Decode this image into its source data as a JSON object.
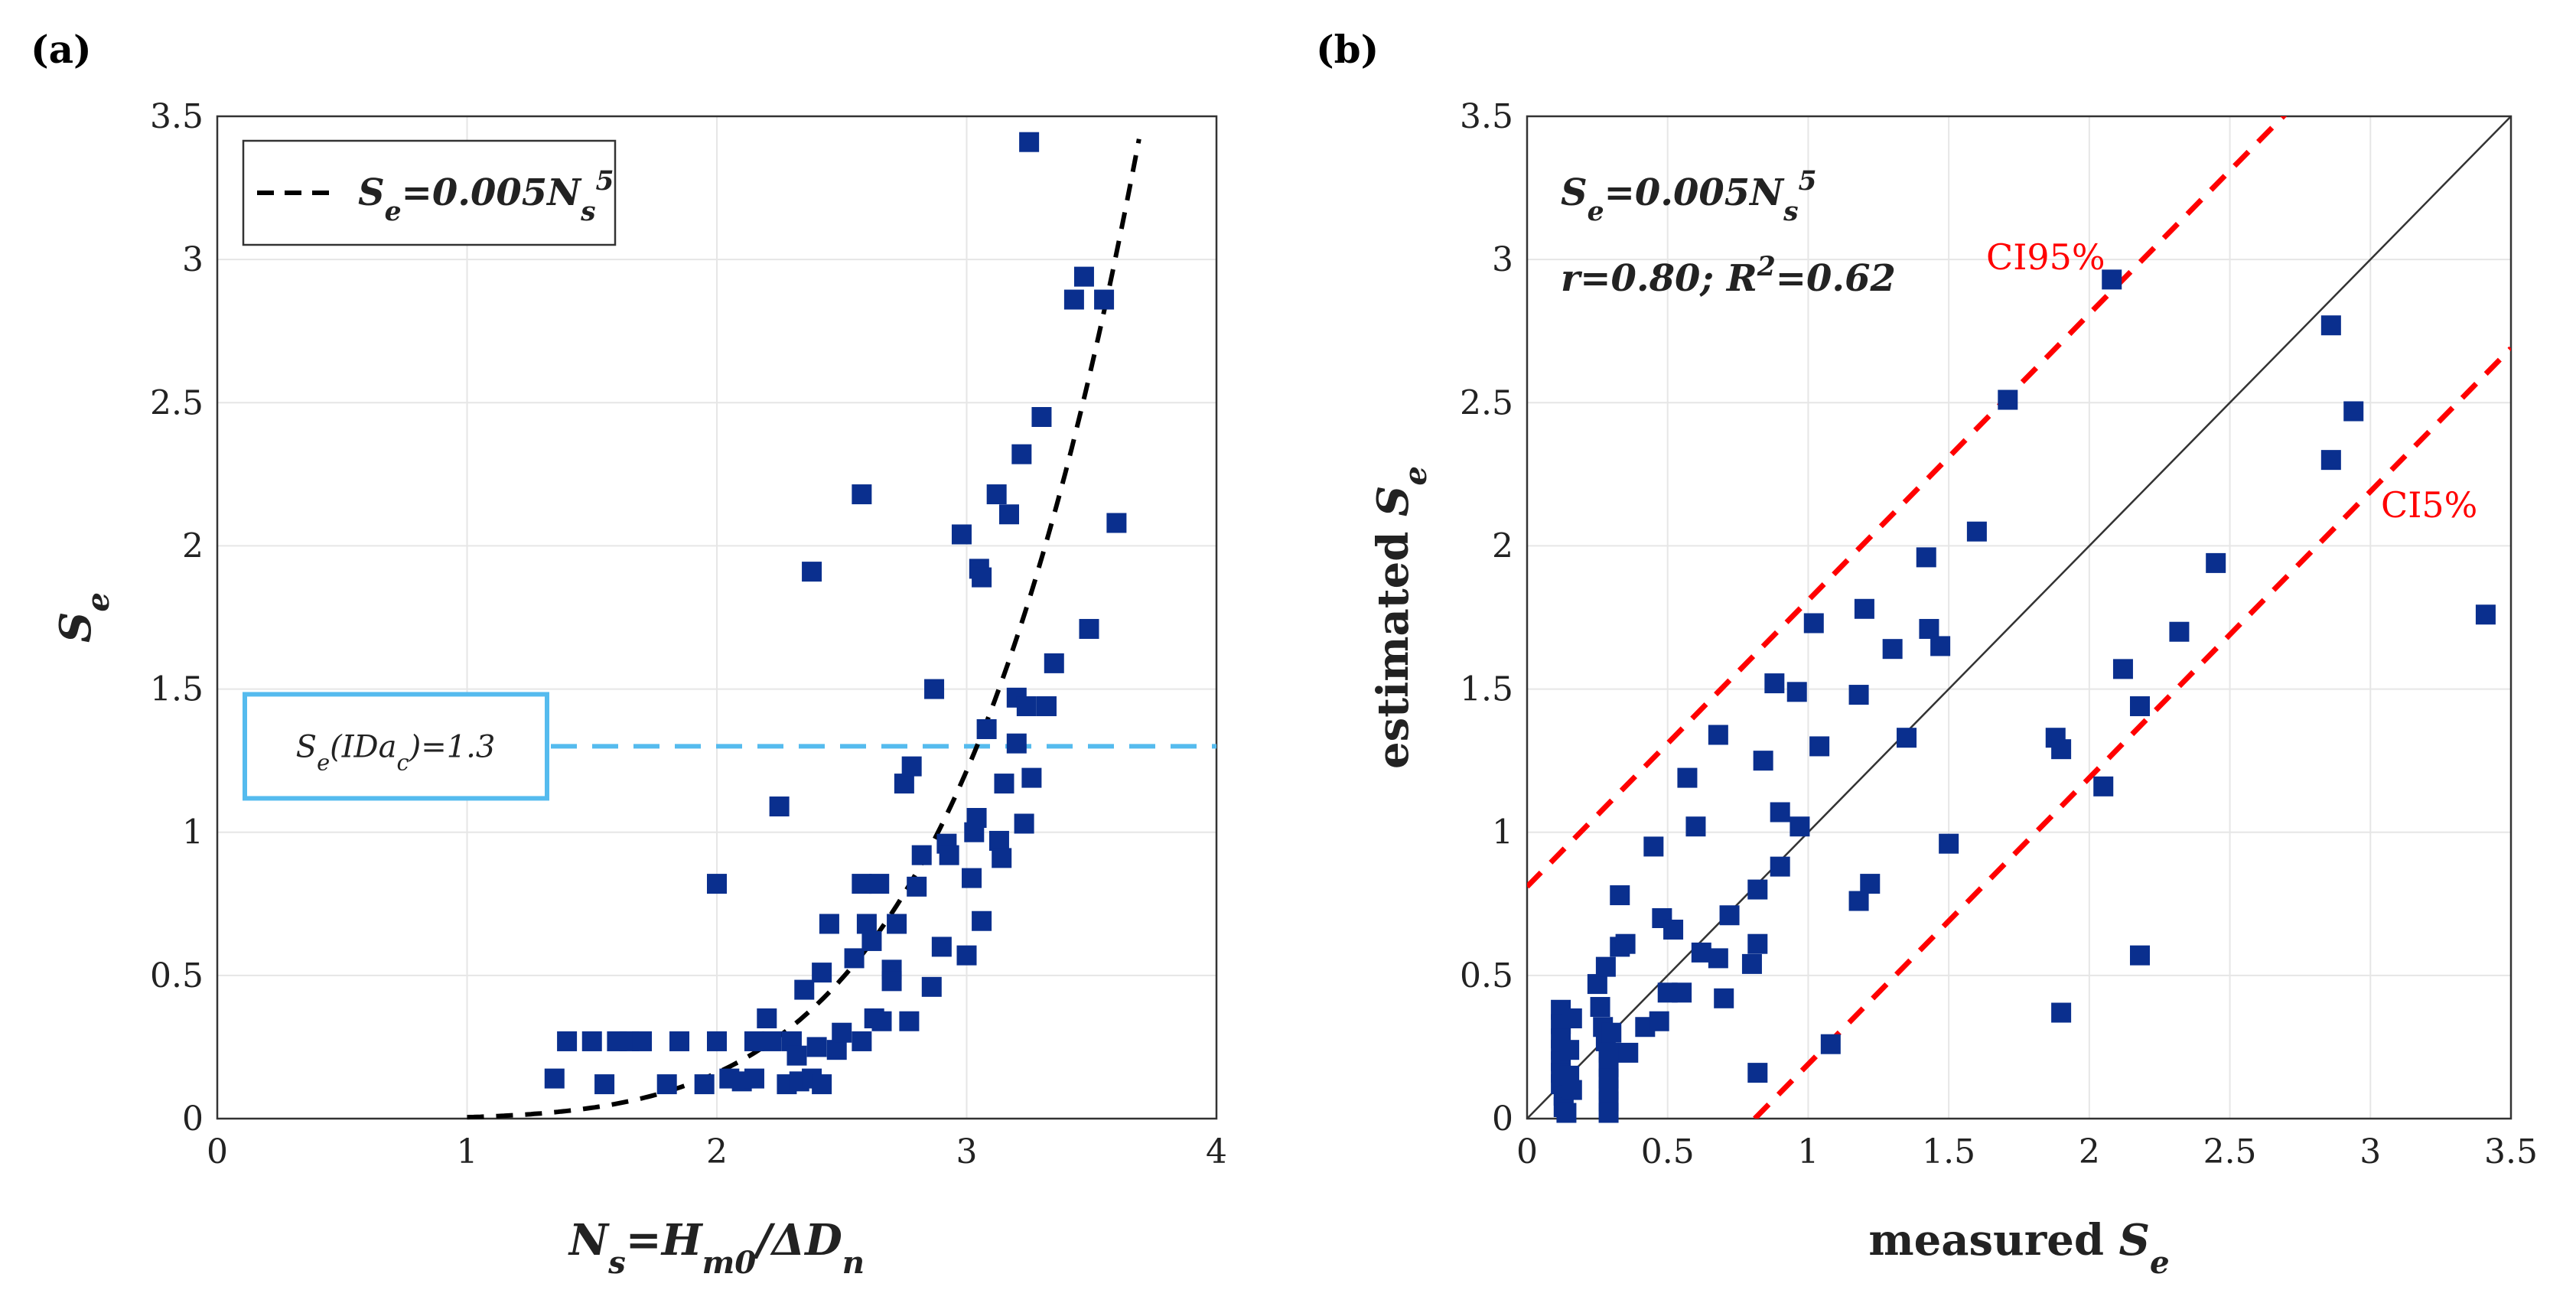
{
  "colors": {
    "marker": "#0a2f8e",
    "fit_curve": "#000000",
    "threshold_line": "#55bbee",
    "ci_lines": "#ff0000",
    "identity_line": "#333333"
  },
  "chart_data": [
    {
      "panel": "(a)",
      "type": "scatter",
      "xlabel_parts": [
        "N",
        "s",
        "=H",
        "m0",
        "/ΔD",
        "n"
      ],
      "ylabel_parts": [
        "S",
        "e"
      ],
      "xlim": [
        0,
        4
      ],
      "ylim": [
        0,
        3.5
      ],
      "x_ticks": [
        "0",
        "1",
        "2",
        "3",
        "4"
      ],
      "y_ticks": [
        "0",
        "0.5",
        "1",
        "1.5",
        "2",
        "2.5",
        "3",
        "3.5"
      ],
      "legend": {
        "label_parts": [
          "S",
          "e",
          "=0.005N",
          "s",
          "5"
        ],
        "position": "top-left"
      },
      "threshold": {
        "value": 1.3,
        "label_parts": [
          "S",
          "e",
          "(IDa",
          "c",
          ")=1.3"
        ]
      },
      "fit": {
        "coef": 0.005,
        "power": 5,
        "x_range": [
          1.0,
          3.69
        ]
      },
      "points": [
        [
          1.35,
          0.14
        ],
        [
          1.4,
          0.27
        ],
        [
          1.5,
          0.27
        ],
        [
          1.55,
          0.12
        ],
        [
          1.6,
          0.27
        ],
        [
          1.65,
          0.27
        ],
        [
          1.7,
          0.27
        ],
        [
          1.8,
          0.12
        ],
        [
          1.85,
          0.27
        ],
        [
          1.95,
          0.12
        ],
        [
          2.0,
          0.27
        ],
        [
          2.05,
          0.14
        ],
        [
          2.1,
          0.13
        ],
        [
          2.15,
          0.27
        ],
        [
          2.15,
          0.14
        ],
        [
          2.2,
          0.35
        ],
        [
          2.22,
          0.27
        ],
        [
          2.25,
          1.09
        ],
        [
          2.28,
          0.12
        ],
        [
          2.3,
          0.27
        ],
        [
          2.32,
          0.22
        ],
        [
          2.33,
          0.13
        ],
        [
          2.35,
          0.45
        ],
        [
          2.38,
          0.14
        ],
        [
          2.4,
          0.25
        ],
        [
          2.42,
          0.12
        ],
        [
          2.42,
          0.51
        ],
        [
          2.45,
          0.68
        ],
        [
          2.48,
          0.24
        ],
        [
          2.5,
          0.3
        ],
        [
          2.55,
          0.56
        ],
        [
          2.58,
          0.27
        ],
        [
          2.58,
          0.82
        ],
        [
          2.6,
          0.68
        ],
        [
          2.62,
          0.62
        ],
        [
          2.63,
          0.35
        ],
        [
          2.65,
          0.82
        ],
        [
          2.66,
          0.34
        ],
        [
          2.7,
          0.52
        ],
        [
          2.7,
          0.48
        ],
        [
          2.72,
          0.68
        ],
        [
          2.75,
          1.17
        ],
        [
          2.77,
          0.34
        ],
        [
          2.78,
          1.23
        ],
        [
          2.8,
          0.81
        ],
        [
          2.82,
          0.92
        ],
        [
          2.86,
          0.46
        ],
        [
          2.87,
          1.5
        ],
        [
          2.9,
          0.6
        ],
        [
          2.92,
          0.96
        ],
        [
          2.93,
          0.92
        ],
        [
          2.98,
          2.04
        ],
        [
          3.0,
          0.57
        ],
        [
          3.02,
          0.84
        ],
        [
          3.03,
          1.0
        ],
        [
          3.04,
          1.05
        ],
        [
          3.05,
          1.92
        ],
        [
          3.06,
          1.89
        ],
        [
          3.06,
          0.69
        ],
        [
          3.08,
          1.36
        ],
        [
          3.12,
          2.18
        ],
        [
          3.13,
          0.97
        ],
        [
          3.14,
          0.91
        ],
        [
          3.15,
          1.17
        ],
        [
          3.17,
          2.11
        ],
        [
          3.2,
          1.47
        ],
        [
          3.2,
          1.31
        ],
        [
          3.22,
          2.32
        ],
        [
          3.23,
          1.03
        ],
        [
          3.24,
          1.44
        ],
        [
          3.25,
          3.41
        ],
        [
          3.26,
          1.19
        ],
        [
          3.3,
          2.45
        ],
        [
          3.32,
          1.44
        ],
        [
          3.35,
          1.59
        ],
        [
          3.43,
          2.86
        ],
        [
          3.47,
          2.94
        ],
        [
          3.49,
          1.71
        ],
        [
          3.55,
          2.86
        ],
        [
          3.6,
          2.08
        ],
        [
          2.38,
          1.91
        ],
        [
          2.58,
          2.18
        ],
        [
          2.0,
          0.82
        ]
      ]
    },
    {
      "panel": "(b)",
      "type": "scatter",
      "xlabel_parts": [
        "measured ",
        "S",
        "e"
      ],
      "ylabel_parts": [
        "estimated ",
        "S",
        "e"
      ],
      "xlim": [
        0,
        3.5
      ],
      "ylim": [
        0,
        3.5
      ],
      "x_ticks": [
        "0",
        "0.5",
        "1",
        "1.5",
        "2",
        "2.5",
        "3",
        "3.5"
      ],
      "y_ticks": [
        "0",
        "0.5",
        "1",
        "1.5",
        "2",
        "2.5",
        "3",
        "3.5"
      ],
      "annotation": {
        "formula_parts": [
          "S",
          "e",
          "=0.005N",
          "s",
          "5"
        ],
        "stats_parts": [
          "r=0.80; R",
          "2",
          "=0.62"
        ]
      },
      "ci95": {
        "label": "CI95%",
        "offset": 0.81
      },
      "ci5": {
        "label": "CI5%",
        "offset": -0.81
      },
      "points": [
        [
          0.12,
          0.38
        ],
        [
          0.12,
          0.33
        ],
        [
          0.12,
          0.28
        ],
        [
          0.12,
          0.24
        ],
        [
          0.12,
          0.2
        ],
        [
          0.12,
          0.16
        ],
        [
          0.12,
          0.12
        ],
        [
          0.13,
          0.08
        ],
        [
          0.13,
          0.04
        ],
        [
          0.14,
          0.02
        ],
        [
          0.15,
          0.24
        ],
        [
          0.15,
          0.15
        ],
        [
          0.16,
          0.1
        ],
        [
          0.16,
          0.35
        ],
        [
          0.25,
          0.47
        ],
        [
          0.26,
          0.39
        ],
        [
          0.27,
          0.32
        ],
        [
          0.28,
          0.53
        ],
        [
          0.28,
          0.27
        ],
        [
          0.29,
          0.23
        ],
        [
          0.29,
          0.18
        ],
        [
          0.29,
          0.14
        ],
        [
          0.29,
          0.1
        ],
        [
          0.29,
          0.06
        ],
        [
          0.29,
          0.02
        ],
        [
          0.3,
          0.3
        ],
        [
          0.33,
          0.78
        ],
        [
          0.33,
          0.6
        ],
        [
          0.35,
          0.61
        ],
        [
          0.36,
          0.23
        ],
        [
          0.42,
          0.32
        ],
        [
          0.45,
          0.95
        ],
        [
          0.47,
          0.34
        ],
        [
          0.48,
          0.7
        ],
        [
          0.5,
          0.44
        ],
        [
          0.52,
          0.66
        ],
        [
          0.55,
          0.44
        ],
        [
          0.57,
          1.19
        ],
        [
          0.6,
          1.02
        ],
        [
          0.62,
          0.58
        ],
        [
          0.68,
          1.34
        ],
        [
          0.68,
          0.56
        ],
        [
          0.7,
          0.42
        ],
        [
          0.72,
          0.71
        ],
        [
          0.8,
          0.54
        ],
        [
          0.82,
          0.8
        ],
        [
          0.82,
          0.61
        ],
        [
          0.84,
          1.25
        ],
        [
          0.88,
          1.52
        ],
        [
          0.9,
          1.07
        ],
        [
          0.9,
          0.88
        ],
        [
          0.96,
          1.49
        ],
        [
          0.97,
          1.02
        ],
        [
          1.02,
          1.73
        ],
        [
          1.04,
          1.3
        ],
        [
          1.08,
          0.26
        ],
        [
          1.18,
          1.48
        ],
        [
          1.2,
          1.78
        ],
        [
          1.18,
          0.76
        ],
        [
          1.22,
          0.82
        ],
        [
          1.3,
          1.64
        ],
        [
          1.35,
          1.33
        ],
        [
          1.42,
          1.96
        ],
        [
          1.43,
          1.71
        ],
        [
          1.47,
          1.65
        ],
        [
          1.5,
          0.96
        ],
        [
          1.6,
          2.05
        ],
        [
          1.71,
          2.51
        ],
        [
          1.88,
          1.33
        ],
        [
          1.9,
          1.29
        ],
        [
          1.9,
          0.37
        ],
        [
          2.05,
          1.16
        ],
        [
          2.08,
          2.93
        ],
        [
          2.12,
          1.57
        ],
        [
          2.18,
          1.44
        ],
        [
          2.18,
          0.57
        ],
        [
          2.32,
          1.7
        ],
        [
          2.45,
          1.94
        ],
        [
          2.86,
          2.77
        ],
        [
          2.86,
          2.3
        ],
        [
          2.94,
          2.47
        ],
        [
          3.41,
          1.76
        ],
        [
          0.82,
          0.16
        ]
      ]
    }
  ]
}
